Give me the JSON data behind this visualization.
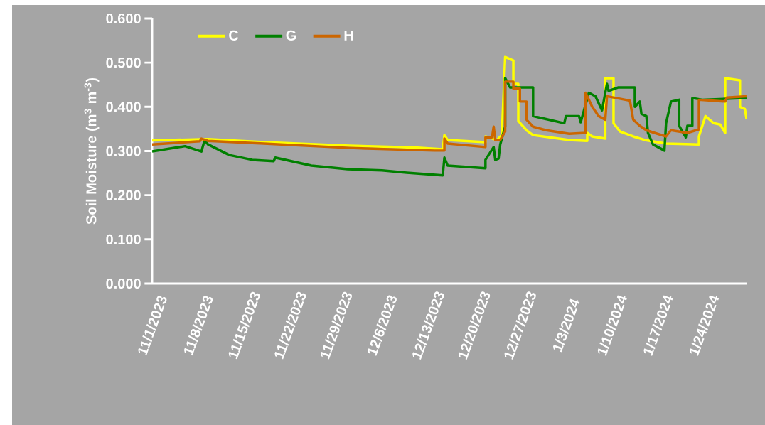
{
  "chart_data": {
    "type": "line",
    "ylabel": "Soil Moisture (m$^{3}$ m$^{-3}$)",
    "xlim": [
      "2023-11-01",
      "2024-01-30T12:00"
    ],
    "xticks": [
      {
        "value": "2023-11-01",
        "label": "11/1/2023"
      },
      {
        "value": "2023-11-08",
        "label": "11/8/2023"
      },
      {
        "value": "2023-11-15",
        "label": "11/15/2023"
      },
      {
        "value": "2023-11-22",
        "label": "11/22/2023"
      },
      {
        "value": "2023-11-29",
        "label": "11/29/2023"
      },
      {
        "value": "2023-12-06",
        "label": "12/6/2023"
      },
      {
        "value": "2023-12-13",
        "label": "12/13/2023"
      },
      {
        "value": "2023-12-20",
        "label": "12/20/2023"
      },
      {
        "value": "2023-12-27",
        "label": "12/27/2023"
      },
      {
        "value": "2024-01-03",
        "label": "1/3/2024"
      },
      {
        "value": "2024-01-10",
        "label": "1/10/2024"
      },
      {
        "value": "2024-01-17",
        "label": "1/17/2024"
      },
      {
        "value": "2024-01-24",
        "label": "1/24/2024"
      }
    ],
    "ylim": [
      0,
      0.6
    ],
    "yticks": [
      {
        "value": 0,
        "label": "0.000"
      },
      {
        "value": 0.1,
        "label": "0.100"
      },
      {
        "value": 0.2,
        "label": "0.200"
      },
      {
        "value": 0.3,
        "label": "0.300"
      },
      {
        "value": 0.4,
        "label": "0.400"
      },
      {
        "value": 0.5,
        "label": "0.500"
      },
      {
        "value": 0.6,
        "label": "0.600"
      }
    ],
    "grid": false,
    "legend": "top left",
    "marker": "none",
    "line_style": "solid",
    "series": [
      {
        "name": "C",
        "color": "#ffff00",
        "x": [
          "2023-11-01",
          "2023-11-09T12:00",
          "2023-11-18",
          "2023-12-01",
          "2023-12-11",
          "2023-12-15T06:00",
          "2023-12-15T12:00",
          "2023-12-16",
          "2023-12-21T18:00",
          "2023-12-21T18:00",
          "2023-12-23T12:00",
          "2023-12-24T06:00",
          "2023-12-24T18:00",
          "2023-12-26",
          "2023-12-26",
          "2023-12-26T18:00",
          "2023-12-26T18:00",
          "2023-12-28",
          "2023-12-29",
          "2024-01-03T12:00",
          "2024-01-06T06:00",
          "2024-01-06T06:00",
          "2024-01-07",
          "2024-01-09",
          "2024-01-09",
          "2024-01-10T06:00",
          "2024-01-10T06:00",
          "2024-01-11T06:00",
          "2024-01-13T06:00",
          "2024-01-15",
          "2024-01-18T06:00",
          "2024-01-23T06:00",
          "2024-01-23T06:00",
          "2024-01-24T06:00",
          "2024-01-25T12:00",
          "2024-01-26T12:00",
          "2024-01-27T06:00",
          "2024-01-27T06:00",
          "2024-01-29T12:00",
          "2024-01-29T12:00",
          "2024-01-30T06:00",
          "2024-01-30T12:00"
        ],
        "values": [
          0.324,
          0.327,
          0.32,
          0.312,
          0.308,
          0.304,
          0.336,
          0.325,
          0.32,
          0.333,
          0.325,
          0.336,
          0.513,
          0.505,
          0.452,
          0.452,
          0.368,
          0.347,
          0.336,
          0.325,
          0.323,
          0.341,
          0.333,
          0.328,
          0.465,
          0.465,
          0.363,
          0.344,
          0.333,
          0.325,
          0.317,
          0.315,
          0.333,
          0.379,
          0.363,
          0.36,
          0.341,
          0.465,
          0.46,
          0.4,
          0.395,
          0.373
        ]
      },
      {
        "name": "G",
        "color": "#008000",
        "x": [
          "2023-11-01",
          "2023-11-06",
          "2023-11-08T12:00",
          "2023-11-09",
          "2023-11-09T12:00",
          "2023-11-12T18:00",
          "2023-11-16T06:00",
          "2023-11-19T12:00",
          "2023-11-19T18:00",
          "2023-11-25T06:00",
          "2023-11-30T18:00",
          "2023-12-06",
          "2023-12-09T18:00",
          "2023-12-15T06:00",
          "2023-12-15T12:00",
          "2023-12-16",
          "2023-12-21T18:00",
          "2023-12-21T18:00",
          "2023-12-23",
          "2023-12-23T06:00",
          "2023-12-23T18:00",
          "2023-12-24",
          "2023-12-24T18:00",
          "2023-12-24T18:00",
          "2023-12-25T12:00",
          "2023-12-29",
          "2023-12-29",
          "2024-01-02T18:00",
          "2024-01-03",
          "2024-01-05",
          "2024-01-05T06:00",
          "2024-01-06T12:00",
          "2024-01-07T12:00",
          "2024-01-08T12:00",
          "2024-01-09T06:00",
          "2024-01-09T12:00",
          "2024-01-11",
          "2024-01-13T12:00",
          "2024-01-13T12:00",
          "2024-01-14T06:00",
          "2024-01-14T12:00",
          "2024-01-15T06:00",
          "2024-01-15T12:00",
          "2024-01-16T06:00",
          "2024-01-17T06:00",
          "2024-01-18",
          "2024-01-18T06:00",
          "2024-01-19",
          "2024-01-20T06:00",
          "2024-01-20T06:00",
          "2024-01-21T06:00",
          "2024-01-21T12:00",
          "2024-01-22T06:00",
          "2024-01-22T06:00",
          "2024-01-23T18:00",
          "2024-01-30T12:00"
        ],
        "values": [
          0.299,
          0.311,
          0.299,
          0.325,
          0.315,
          0.291,
          0.28,
          0.277,
          0.285,
          0.267,
          0.259,
          0.256,
          0.251,
          0.245,
          0.285,
          0.267,
          0.261,
          0.28,
          0.309,
          0.28,
          0.283,
          0.315,
          0.355,
          0.465,
          0.444,
          0.444,
          0.379,
          0.363,
          0.379,
          0.379,
          0.365,
          0.432,
          0.424,
          0.392,
          0.452,
          0.436,
          0.444,
          0.444,
          0.4,
          0.412,
          0.384,
          0.379,
          0.341,
          0.315,
          0.307,
          0.301,
          0.363,
          0.412,
          0.416,
          0.357,
          0.331,
          0.357,
          0.357,
          0.42,
          0.416,
          0.42
        ]
      },
      {
        "name": "H",
        "color": "#cc6600",
        "x": [
          "2023-11-01",
          "2023-11-08T06:00",
          "2023-11-08T12:00",
          "2023-11-09T12:00",
          "2023-11-18",
          "2023-12-01",
          "2023-12-14",
          "2023-12-15T12:00",
          "2023-12-15T12:00",
          "2023-12-16",
          "2023-12-21T18:00",
          "2023-12-21T18:00",
          "2023-12-22T18:00",
          "2023-12-23",
          "2023-12-23T06:00",
          "2023-12-24",
          "2023-12-24T18:00",
          "2023-12-24T18:00",
          "2023-12-26",
          "2023-12-26",
          "2023-12-27",
          "2023-12-27",
          "2023-12-28",
          "2023-12-28",
          "2023-12-29",
          "2023-12-31",
          "2024-01-03T12:00",
          "2024-01-06",
          "2024-01-06",
          "2024-01-07",
          "2024-01-08",
          "2024-01-09",
          "2024-01-09T06:00",
          "2024-01-12T18:00",
          "2024-01-13T06:00",
          "2024-01-14T06:00",
          "2024-01-15T06:00",
          "2024-01-16T12:00",
          "2024-01-18T06:00",
          "2024-01-19",
          "2024-01-21T12:00",
          "2024-01-23T06:00",
          "2024-01-23T06:00",
          "2024-01-27T06:00",
          "2024-01-27T12:00",
          "2024-01-30T12:00"
        ],
        "values": [
          0.315,
          0.322,
          0.328,
          0.323,
          0.317,
          0.307,
          0.301,
          0.301,
          0.328,
          0.317,
          0.309,
          0.331,
          0.331,
          0.355,
          0.325,
          0.325,
          0.344,
          0.457,
          0.457,
          0.441,
          0.441,
          0.412,
          0.412,
          0.371,
          0.355,
          0.347,
          0.339,
          0.341,
          0.432,
          0.4,
          0.379,
          0.371,
          0.424,
          0.414,
          0.371,
          0.357,
          0.347,
          0.341,
          0.333,
          0.347,
          0.341,
          0.349,
          0.416,
          0.412,
          0.421,
          0.424
        ]
      }
    ]
  }
}
